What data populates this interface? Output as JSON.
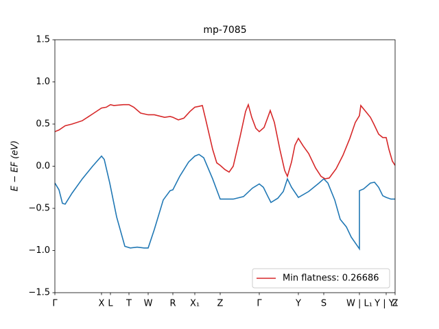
{
  "chart_data": {
    "type": "line",
    "title": "mp-7085",
    "y_label": "E − EF (eV)",
    "xlim": [
      0,
      4.96
    ],
    "ylim": [
      -1.5,
      1.5
    ],
    "xticks": [
      {
        "value": 0,
        "label": "Γ"
      },
      {
        "value": 0.68,
        "label": "X"
      },
      {
        "value": 0.81,
        "label": "L"
      },
      {
        "value": 1.08,
        "label": "T"
      },
      {
        "value": 1.36,
        "label": "W"
      },
      {
        "value": 1.72,
        "label": "R"
      },
      {
        "value": 2.04,
        "label": "X₁"
      },
      {
        "value": 2.41,
        "label": "Z"
      },
      {
        "value": 2.98,
        "label": "Γ"
      },
      {
        "value": 3.55,
        "label": "Y"
      },
      {
        "value": 3.92,
        "label": "S"
      },
      {
        "value": 4.44,
        "label": "W | L₁"
      },
      {
        "value": 4.83,
        "label": "Y | Y₁"
      },
      {
        "value": 4.96,
        "label": "Z"
      }
    ],
    "yticks": [
      {
        "value": -1.5,
        "label": "−1.5"
      },
      {
        "value": -1.0,
        "label": "−1.0"
      },
      {
        "value": -0.5,
        "label": "−0.5"
      },
      {
        "value": 0,
        "label": "0.0"
      },
      0.5,
      {
        "value": 1.0,
        "label": "1.0"
      },
      1.5
    ],
    "legend": "lower right",
    "series": [
      {
        "color": "#1f77b4",
        "x": [
          0,
          0.06,
          0.11,
          0.15,
          0.25,
          0.4,
          0.55,
          0.68,
          0.72,
          0.8,
          0.9,
          1.02,
          1.1,
          1.2,
          1.3,
          1.36,
          1.45,
          1.58,
          1.68,
          1.72,
          1.82,
          1.95,
          2.04,
          2.1,
          2.17,
          2.3,
          2.41,
          2.6,
          2.75,
          2.88,
          2.98,
          3.04,
          3.1,
          3.15,
          3.25,
          3.33,
          3.39,
          3.45,
          3.55,
          3.7,
          3.85,
          3.92,
          3.98,
          4.08,
          4.16,
          4.25,
          4.32,
          4.44,
          4.44,
          4.5,
          4.6,
          4.66,
          4.72,
          4.78,
          4.83,
          4.9,
          4.96
        ],
        "values": [
          -0.2,
          -0.28,
          -0.44,
          -0.45,
          -0.32,
          -0.15,
          0,
          0.12,
          0.08,
          -0.2,
          -0.6,
          -0.95,
          -0.97,
          -0.96,
          -0.97,
          -0.97,
          -0.75,
          -0.4,
          -0.29,
          -0.28,
          -0.12,
          0.05,
          0.12,
          0.14,
          0.1,
          -0.15,
          -0.39,
          -0.39,
          -0.36,
          -0.26,
          -0.21,
          -0.25,
          -0.35,
          -0.43,
          -0.38,
          -0.3,
          -0.15,
          -0.25,
          -0.37,
          -0.3,
          -0.2,
          -0.15,
          -0.2,
          -0.4,
          -0.63,
          -0.72,
          -0.84,
          -0.98,
          -0.29,
          -0.27,
          -0.2,
          -0.19,
          -0.25,
          -0.35,
          -0.37,
          -0.39,
          -0.39
        ]
      },
      {
        "name": "Min flatness: 0.26686",
        "color": "#d62728",
        "x": [
          0,
          0.06,
          0.15,
          0.25,
          0.4,
          0.55,
          0.68,
          0.75,
          0.81,
          0.86,
          1.0,
          1.08,
          1.15,
          1.25,
          1.36,
          1.45,
          1.6,
          1.68,
          1.72,
          1.8,
          1.88,
          1.97,
          2.04,
          2.1,
          2.15,
          2.2,
          2.3,
          2.36,
          2.41,
          2.48,
          2.54,
          2.6,
          2.7,
          2.78,
          2.82,
          2.87,
          2.93,
          2.98,
          3.05,
          3.1,
          3.14,
          3.2,
          3.28,
          3.35,
          3.39,
          3.45,
          3.5,
          3.55,
          3.62,
          3.7,
          3.8,
          3.88,
          3.94,
          4.0,
          4.1,
          4.2,
          4.3,
          4.38,
          4.44,
          4.46,
          4.53,
          4.6,
          4.65,
          4.72,
          4.78,
          4.83,
          4.87,
          4.92,
          4.96
        ],
        "values": [
          0.41,
          0.43,
          0.48,
          0.5,
          0.54,
          0.62,
          0.69,
          0.7,
          0.73,
          0.72,
          0.73,
          0.73,
          0.7,
          0.63,
          0.61,
          0.61,
          0.58,
          0.59,
          0.58,
          0.55,
          0.57,
          0.65,
          0.7,
          0.71,
          0.72,
          0.55,
          0.2,
          0.04,
          0.01,
          -0.04,
          -0.07,
          0,
          0.35,
          0.65,
          0.73,
          0.58,
          0.45,
          0.41,
          0.46,
          0.57,
          0.66,
          0.52,
          0.2,
          -0.05,
          -0.12,
          0.05,
          0.25,
          0.33,
          0.24,
          0.15,
          -0.02,
          -0.12,
          -0.15,
          -0.14,
          -0.03,
          0.13,
          0.33,
          0.52,
          0.6,
          0.72,
          0.65,
          0.58,
          0.5,
          0.38,
          0.34,
          0.34,
          0.2,
          0.06,
          0.01
        ]
      }
    ]
  }
}
